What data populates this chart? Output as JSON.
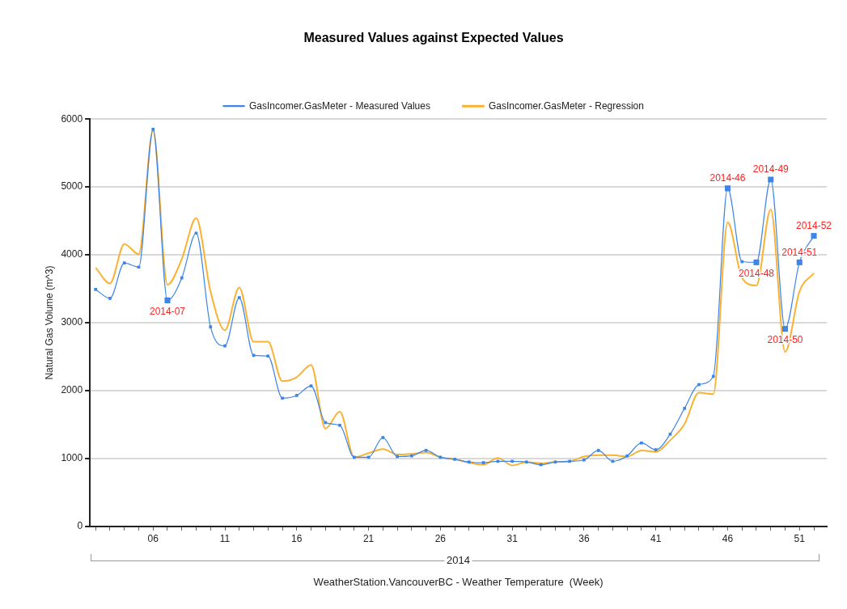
{
  "chart_data": {
    "type": "line",
    "title": "Measured Values against Expected Values",
    "xlabel": "WeatherStation.VancouverBC - Weather Temperature  (Week)",
    "ylabel": "Natural Gas Volume (m^3)",
    "x": [
      2,
      3,
      4,
      5,
      6,
      7,
      8,
      9,
      10,
      11,
      12,
      13,
      14,
      15,
      16,
      17,
      18,
      19,
      20,
      21,
      22,
      23,
      24,
      25,
      26,
      27,
      28,
      29,
      30,
      31,
      32,
      33,
      34,
      35,
      36,
      37,
      38,
      39,
      40,
      41,
      42,
      43,
      44,
      45,
      46,
      47,
      48,
      49,
      50,
      51,
      52
    ],
    "xlim": [
      1.6,
      52.9
    ],
    "xticks": [
      {
        "value": 2,
        "label": null
      },
      {
        "value": 3,
        "label": null
      },
      {
        "value": 4,
        "label": null
      },
      {
        "value": 5,
        "label": null
      },
      {
        "value": 6,
        "label": "06"
      },
      {
        "value": 7,
        "label": null
      },
      {
        "value": 8,
        "label": null
      },
      {
        "value": 9,
        "label": null
      },
      {
        "value": 10,
        "label": null
      },
      {
        "value": 11,
        "label": "11"
      },
      {
        "value": 12,
        "label": null
      },
      {
        "value": 13,
        "label": null
      },
      {
        "value": 14,
        "label": null
      },
      {
        "value": 15,
        "label": null
      },
      {
        "value": 16,
        "label": "16"
      },
      {
        "value": 17,
        "label": null
      },
      {
        "value": 18,
        "label": null
      },
      {
        "value": 19,
        "label": null
      },
      {
        "value": 20,
        "label": null
      },
      {
        "value": 21,
        "label": "21"
      },
      {
        "value": 22,
        "label": null
      },
      {
        "value": 23,
        "label": null
      },
      {
        "value": 24,
        "label": null
      },
      {
        "value": 25,
        "label": null
      },
      {
        "value": 26,
        "label": "26"
      },
      {
        "value": 27,
        "label": null
      },
      {
        "value": 28,
        "label": null
      },
      {
        "value": 29,
        "label": null
      },
      {
        "value": 30,
        "label": null
      },
      {
        "value": 31,
        "label": "31"
      },
      {
        "value": 32,
        "label": null
      },
      {
        "value": 33,
        "label": null
      },
      {
        "value": 34,
        "label": null
      },
      {
        "value": 35,
        "label": null
      },
      {
        "value": 36,
        "label": "36"
      },
      {
        "value": 37,
        "label": null
      },
      {
        "value": 38,
        "label": null
      },
      {
        "value": 39,
        "label": null
      },
      {
        "value": 40,
        "label": null
      },
      {
        "value": 41,
        "label": "41"
      },
      {
        "value": 42,
        "label": null
      },
      {
        "value": 43,
        "label": null
      },
      {
        "value": 44,
        "label": null
      },
      {
        "value": 45,
        "label": null
      },
      {
        "value": 46,
        "label": "46"
      },
      {
        "value": 47,
        "label": null
      },
      {
        "value": 48,
        "label": null
      },
      {
        "value": 49,
        "label": null
      },
      {
        "value": 50,
        "label": null
      },
      {
        "value": 51,
        "label": "51"
      },
      {
        "value": 52,
        "label": null
      }
    ],
    "ylim": [
      0,
      6000
    ],
    "yticks": [
      0,
      1000,
      2000,
      3000,
      4000,
      5000,
      6000
    ],
    "grid": "y",
    "legend": "top",
    "series": [
      {
        "name": "GasIncomer.GasMeter - Measured Values",
        "color": "#3d85e6",
        "marker": "square",
        "values": [
          3490,
          3360,
          3880,
          3820,
          5850,
          3330,
          3660,
          4320,
          2940,
          2660,
          3370,
          2520,
          2510,
          1890,
          1930,
          2070,
          1530,
          1490,
          1020,
          1020,
          1310,
          1030,
          1040,
          1120,
          1020,
          990,
          950,
          940,
          960,
          960,
          950,
          910,
          950,
          960,
          980,
          1120,
          960,
          1040,
          1230,
          1130,
          1360,
          1740,
          2090,
          2210,
          4980,
          3900,
          3890,
          5110,
          2910,
          3890,
          4280
        ]
      },
      {
        "name": "GasIncomer.GasMeter - Regression",
        "color": "#f9b233",
        "marker": "none",
        "values": [
          3810,
          3580,
          4160,
          4010,
          5830,
          3560,
          3940,
          4540,
          3460,
          2890,
          3520,
          2720,
          2720,
          2140,
          2200,
          2380,
          1440,
          1690,
          1020,
          1080,
          1140,
          1060,
          1070,
          1090,
          1020,
          990,
          940,
          910,
          1010,
          900,
          950,
          930,
          950,
          960,
          1030,
          1050,
          1050,
          1030,
          1120,
          1100,
          1270,
          1510,
          1970,
          1950,
          4480,
          3660,
          3550,
          4670,
          2570,
          3460,
          3730
        ]
      }
    ],
    "annotations": [
      {
        "text": "2014-07",
        "x": 7,
        "y": 3330
      },
      {
        "text": "2014-46",
        "x": 46,
        "y": 4980
      },
      {
        "text": "2014-48",
        "x": 48,
        "y": 3890
      },
      {
        "text": "2014-49",
        "x": 49,
        "y": 5110
      },
      {
        "text": "2014-50",
        "x": 50,
        "y": 2910
      },
      {
        "text": "2014-51",
        "x": 51,
        "y": 3890
      },
      {
        "text": "2014-52",
        "x": 52,
        "y": 4280
      },
      "2014"
    ]
  }
}
